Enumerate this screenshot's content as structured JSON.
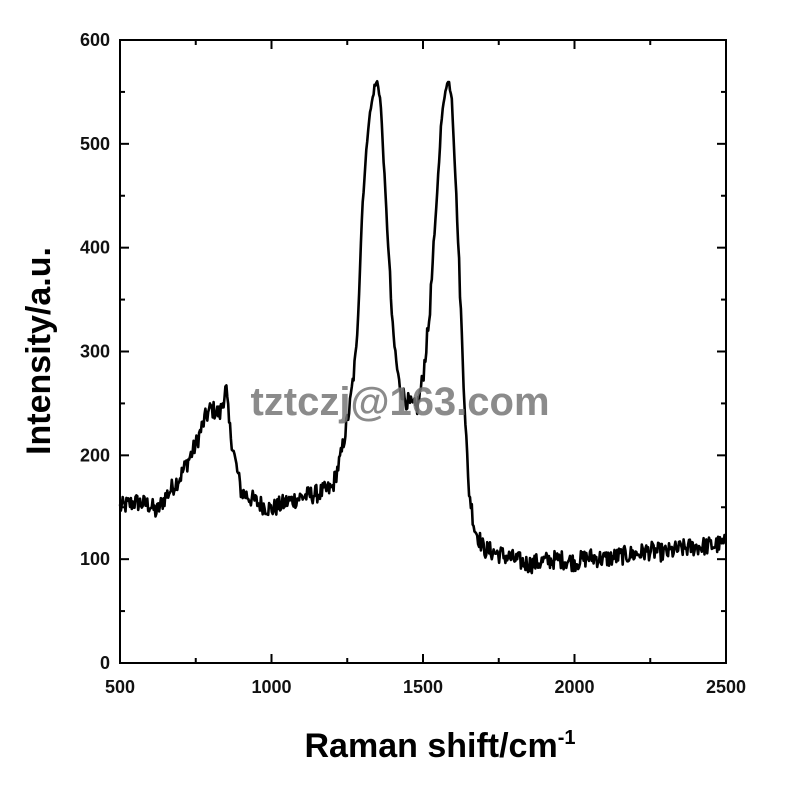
{
  "chart_data": {
    "type": "line",
    "title": "",
    "xlabel": "Raman shift/cm",
    "xlabel_sup": "-1",
    "ylabel": "Intensity/a.u.",
    "xlim": [
      500,
      2500
    ],
    "ylim": [
      0,
      600
    ],
    "xticks": [
      "500",
      "1000",
      "1500",
      "2000",
      "2500"
    ],
    "yticks": [
      "0",
      "100",
      "200",
      "300",
      "400",
      "500",
      "600"
    ],
    "grid": false,
    "legend": "none",
    "line_color": "#000000",
    "series": [
      {
        "x": [
          500,
          550,
          600,
          620,
          650,
          700,
          750,
          780,
          800,
          830,
          850,
          860,
          880,
          900,
          950,
          1000,
          1050,
          1100,
          1150,
          1200,
          1230,
          1260,
          1280,
          1300,
          1320,
          1340,
          1350,
          1360,
          1380,
          1400,
          1420,
          1440,
          1460,
          1480,
          1500,
          1520,
          1540,
          1560,
          1575,
          1585,
          1595,
          1610,
          1630,
          1650,
          1670,
          1700,
          1750,
          1800,
          1850,
          1900,
          1950,
          2000,
          2050,
          2100,
          2150,
          2200,
          2250,
          2300,
          2350,
          2400,
          2450,
          2500
        ],
        "y": [
          150,
          155,
          152,
          145,
          160,
          180,
          210,
          235,
          245,
          240,
          265,
          230,
          195,
          165,
          155,
          148,
          155,
          160,
          163,
          168,
          200,
          250,
          300,
          440,
          520,
          555,
          560,
          540,
          430,
          320,
          270,
          255,
          248,
          245,
          275,
          330,
          420,
          520,
          555,
          560,
          545,
          450,
          300,
          170,
          130,
          110,
          105,
          100,
          95,
          98,
          100,
          97,
          102,
          100,
          103,
          105,
          108,
          106,
          110,
          112,
          113,
          115
        ]
      }
    ],
    "watermark": "tztczj@163.com"
  }
}
